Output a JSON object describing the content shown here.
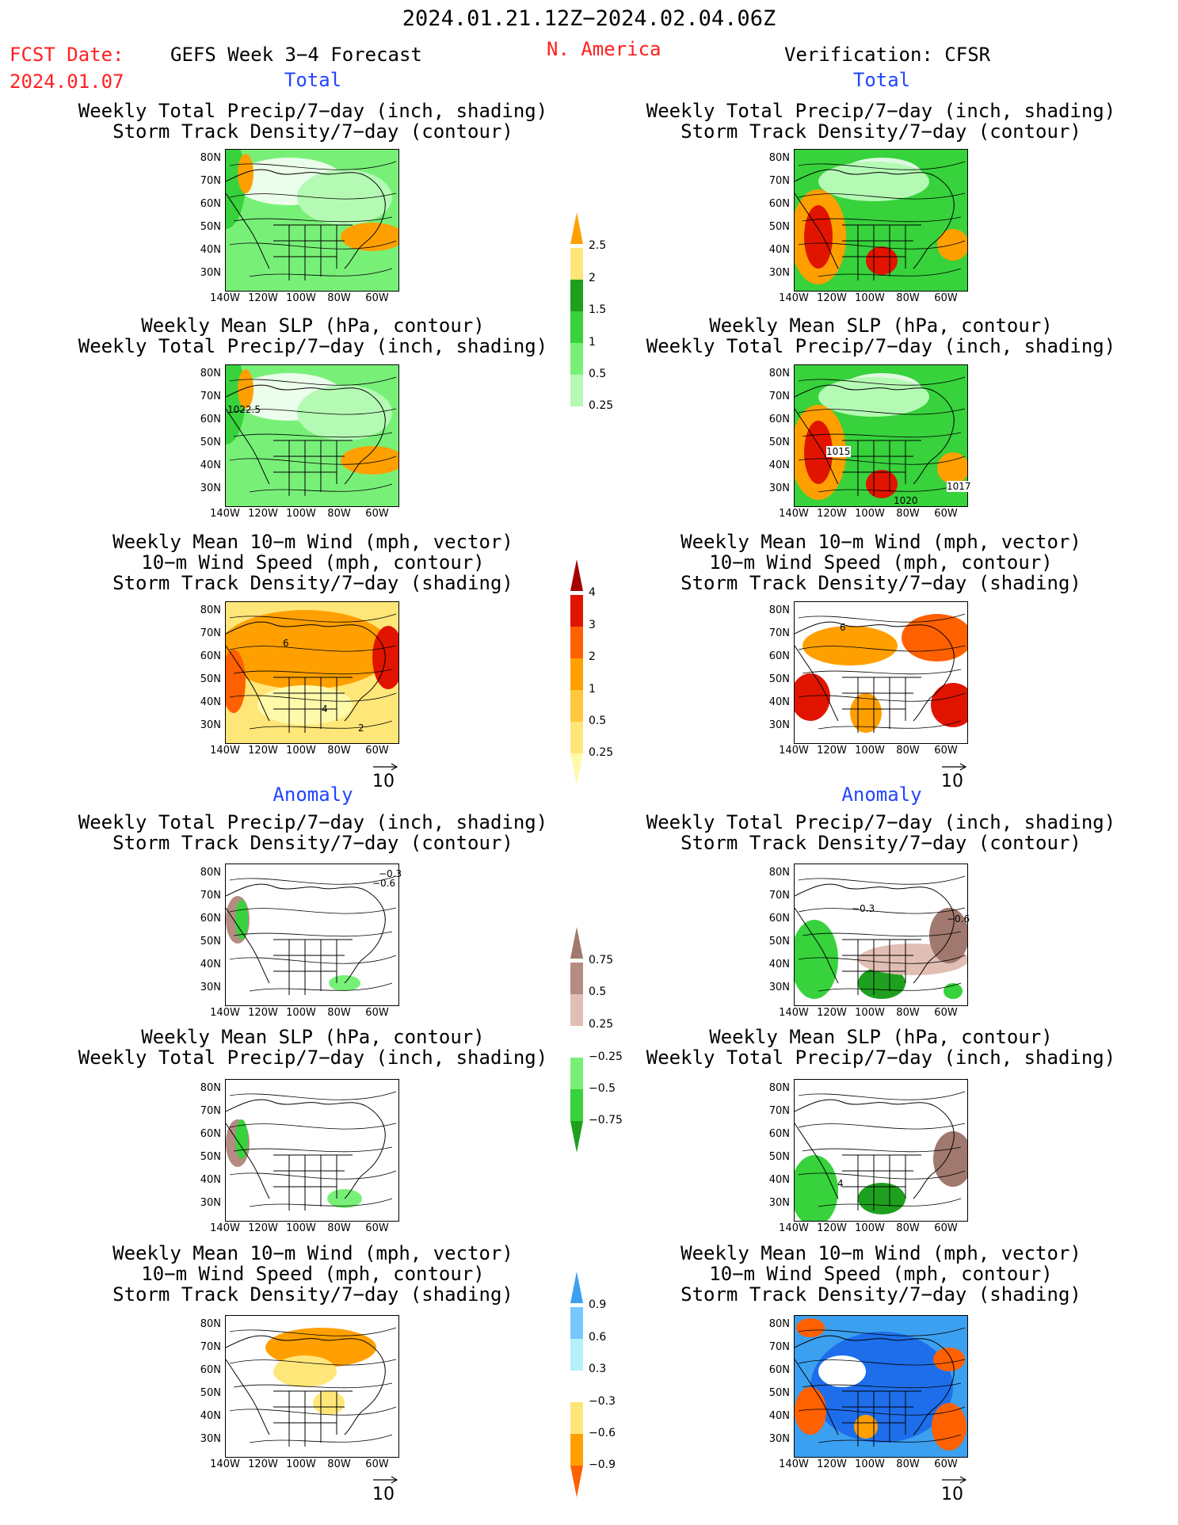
{
  "header": {
    "date_range": "2024.01.21.12Z−2024.02.04.06Z",
    "fcst_label": "FCST Date:",
    "fcst_date": "2024.01.07",
    "model": "GEFS Week 3−4 Forecast",
    "region": "N. America",
    "verification": "Verification: CFSR"
  },
  "sections": {
    "total": "Total",
    "anomaly": "Anomaly"
  },
  "titles": {
    "precip_storm_1": "Weekly Total Precip/7−day (inch, shading)",
    "precip_storm_2": "Storm Track Density/7−day (contour)",
    "slp_1": "Weekly Mean SLP (hPa, contour)",
    "slp_2": "Weekly Total Precip/7−day (inch, shading)",
    "wind_1": "Weekly Mean 10−m Wind (mph, vector)",
    "wind_2": "10−m Wind Speed (mph, contour)",
    "wind_3": "Storm Track Density/7−day (shading)"
  },
  "axes": {
    "lat_ticks": [
      "80N",
      "70N",
      "60N",
      "50N",
      "40N",
      "30N"
    ],
    "lon_ticks": [
      "140W",
      "120W",
      "100W",
      "80W",
      "60W"
    ]
  },
  "vector_ref": "10",
  "colorbars": {
    "precip_total": [
      "2.5",
      "2",
      "1.5",
      "1",
      "0.5",
      "0.25"
    ],
    "storm_total": [
      "4",
      "3",
      "2",
      "1",
      "0.5",
      "0.25"
    ],
    "precip_anom": [
      "0.75",
      "0.5",
      "0.25",
      "−0.25",
      "−0.5",
      "−0.75"
    ],
    "storm_anom": [
      "0.9",
      "0.6",
      "0.3",
      "−0.3",
      "−0.6",
      "−0.9"
    ]
  },
  "contour_labels": {
    "slp_fc_total": "1022.5",
    "slp_obs_total_a": "1015",
    "slp_obs_total_b": "1020",
    "slp_obs_total_c": "1017",
    "storm_fc_anom_a": "−0.3",
    "storm_fc_anom_b": "−0.6",
    "storm_obs_anom_a": "−0.3",
    "storm_obs_anom_b": "−0.6",
    "wind_fc_a": "6",
    "wind_fc_b": "4",
    "wind_fc_c": "2",
    "wind_obs_a": "6",
    "slp_obs_anom": "4"
  },
  "colors": {
    "precip_scale": [
      "#b4fab4",
      "#78f078",
      "#37d23c",
      "#1ea01e",
      "#ffe678",
      "#ffa000",
      "#e11400"
    ],
    "storm_scale": [
      "#fffaaa",
      "#ffe678",
      "#ffc83c",
      "#ffa000",
      "#ff6000",
      "#e11400",
      "#a50000"
    ],
    "precip_anom_scale": [
      "#1ea01e",
      "#37d23c",
      "#78f078",
      "#b4fab4",
      "#e1beb4",
      "#b48c82",
      "#a0786e",
      "#6e5046"
    ],
    "storm_anom_scale": [
      "#ff6000",
      "#ffa000",
      "#ffe678",
      "#b4f0fa",
      "#78c8ff",
      "#3ca0f0",
      "#1e6eeb"
    ],
    "header_red": "#ff2020",
    "header_blue": "#2244ff"
  }
}
